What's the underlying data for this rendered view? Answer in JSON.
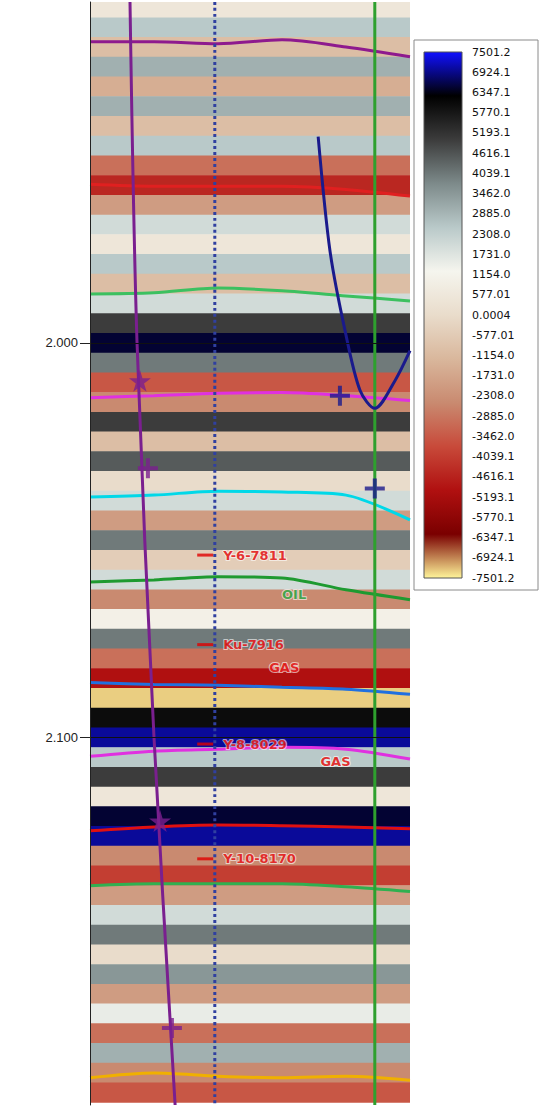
{
  "chart_data": {
    "type": "seismic_section",
    "ylim": [
      1.9136,
      2.1932
    ],
    "yticks": [
      {
        "value": 2.0,
        "label": "2.000"
      },
      {
        "value": 2.1,
        "label": "2.100"
      }
    ],
    "xlim": [
      0,
      100
    ],
    "tick_labels": "y",
    "grid": true,
    "amplitude": {
      "time": [
        1.915,
        1.92,
        1.925,
        1.93,
        1.935,
        1.94,
        1.945,
        1.95,
        1.955,
        1.96,
        1.965,
        1.97,
        1.975,
        1.98,
        1.985,
        1.99,
        1.995,
        2.0,
        2.005,
        2.01,
        2.015,
        2.02,
        2.025,
        2.03,
        2.035,
        2.04,
        2.045,
        2.05,
        2.055,
        2.06,
        2.065,
        2.07,
        2.075,
        2.08,
        2.085,
        2.09,
        2.095,
        2.1,
        2.105,
        2.11,
        2.115,
        2.12,
        2.125,
        2.13,
        2.135,
        2.14,
        2.145,
        2.15,
        2.155,
        2.16,
        2.165,
        2.17,
        2.175,
        2.18,
        2.185,
        2.19
      ],
      "values": [
        500,
        2500,
        -1000,
        3000,
        -1500,
        3000,
        -1000,
        2500,
        -3000,
        -4500,
        -2000,
        2000,
        500,
        2500,
        -1000,
        2000,
        5000,
        6500,
        4000,
        -3500,
        -2500,
        5000,
        -1000,
        4500,
        0,
        2000,
        -2000,
        4000,
        -500,
        2000,
        -2500,
        1000,
        4000,
        -3000,
        -5000,
        -7300,
        6000,
        7000,
        2500,
        5000,
        500,
        6500,
        7000,
        -2500,
        -4000,
        -2000,
        2000,
        4000,
        0,
        3500,
        -2000,
        1500,
        -3000,
        3000,
        -2500,
        -3500
      ]
    },
    "colorbar": {
      "range": [
        -7501.2,
        7501.2
      ],
      "ticks": [
        7501.2,
        6924.1,
        6347.1,
        5770.1,
        5193.1,
        4616.1,
        4039.1,
        {
          "value": 3462,
          "label": "3462.0"
        },
        {
          "value": 2885,
          "label": "2885.0"
        },
        {
          "value": 2308,
          "label": "2308.0"
        },
        {
          "value": 1731,
          "label": "1731.0"
        },
        {
          "value": 1154,
          "label": "1154.0"
        },
        577.01,
        0.0004,
        -577.01,
        {
          "value": -1154,
          "label": "-1154.0"
        },
        {
          "value": -1731,
          "label": "-1731.0"
        },
        {
          "value": -2308,
          "label": "-2308.0"
        },
        {
          "value": -2885,
          "label": "-2885.0"
        },
        {
          "value": -3462,
          "label": "-3462.0"
        },
        -4039.1,
        -4616.1,
        -5193.1,
        -5770.1,
        -6347.1,
        -6924.1,
        -7501.2
      ],
      "colors": [
        "#fff59a",
        "#7a0000",
        "#b01010",
        "#c84a3a",
        "#c98a70",
        "#d9b79c",
        "#e9dccb",
        "#f5f5ee",
        "#b9c9c9",
        "#7d8a8a",
        "#3c3c3c",
        "#000000",
        "#1010ff"
      ]
    },
    "series": [
      {
        "type": "line",
        "color": "#8e1a8e",
        "line_style": "solid",
        "x": [
          0,
          20,
          40,
          60,
          80,
          100
        ],
        "values": [
          1.9237,
          1.9237,
          1.9242,
          1.9232,
          1.925,
          1.9275
        ]
      },
      {
        "type": "line",
        "color": "#e02020",
        "line_style": "solid",
        "x": [
          0,
          20,
          40,
          60,
          80,
          100
        ],
        "values": [
          1.9598,
          1.9603,
          1.9603,
          1.9603,
          1.9611,
          1.9628
        ]
      },
      {
        "type": "line",
        "color": "#3cc060",
        "line_style": "solid",
        "x": [
          0,
          20,
          40,
          60,
          80,
          100
        ],
        "values": [
          1.9876,
          1.9873,
          1.9861,
          1.9868,
          1.9881,
          1.9894
        ]
      },
      {
        "type": "line",
        "color": "#e030e0",
        "line_style": "solid",
        "x": [
          0,
          20,
          40,
          60,
          80,
          100
        ],
        "values": [
          2.0139,
          2.0134,
          2.0128,
          2.0126,
          2.0134,
          2.0146
        ]
      },
      {
        "type": "line",
        "color": "#00d8e8",
        "line_style": "solid",
        "x": [
          0,
          20,
          40,
          60,
          80,
          100
        ],
        "values": [
          2.0391,
          2.0386,
          2.0376,
          2.0378,
          2.0386,
          2.0449
        ]
      },
      {
        "type": "line",
        "color": "#1e9a30",
        "line_style": "solid",
        "x": [
          0,
          20,
          40,
          60,
          80,
          100
        ],
        "values": [
          2.0606,
          2.0601,
          2.0593,
          2.0596,
          2.0626,
          2.0651
        ]
      },
      {
        "type": "line",
        "color": "#2070e0",
        "line_style": "solid",
        "x": [
          0,
          20,
          40,
          60,
          80,
          100
        ],
        "values": [
          2.0861,
          2.0866,
          2.0868,
          2.0873,
          2.0878,
          2.0891
        ]
      },
      {
        "type": "line",
        "color": "#e030e0",
        "line_style": "solid",
        "x": [
          0,
          20,
          40,
          60,
          80,
          100
        ],
        "values": [
          2.1048,
          2.1035,
          2.103,
          2.1025,
          2.103,
          2.1055
        ]
      },
      {
        "type": "line",
        "color": "#e01010",
        "line_style": "solid",
        "x": [
          0,
          20,
          40,
          60,
          80,
          100
        ],
        "values": [
          2.1237,
          2.1227,
          2.1222,
          2.1224,
          2.1227,
          2.1232
        ]
      },
      {
        "type": "line",
        "color": "#30b050",
        "line_style": "solid",
        "x": [
          0,
          20,
          40,
          60,
          80,
          100
        ],
        "values": [
          2.1376,
          2.1371,
          2.1371,
          2.1371,
          2.1379,
          2.1391
        ]
      },
      {
        "type": "line",
        "color": "#f0b000",
        "line_style": "solid",
        "x": [
          0,
          20,
          40,
          60,
          80,
          100
        ],
        "values": [
          2.1863,
          2.1851,
          2.1859,
          2.1863,
          2.1859,
          2.1869
        ]
      },
      {
        "type": "line",
        "color": "#3040a0",
        "line_style": "dotted",
        "x": [
          39,
          39
        ],
        "values": [
          1.9136,
          2.1932
        ]
      },
      {
        "type": "line",
        "color": "#2ea02e",
        "line_style": "solid",
        "x": [
          89,
          89
        ],
        "values": [
          1.9136,
          2.1932
        ]
      },
      {
        "type": "line",
        "color": "#1a1a8c",
        "line_style": "solid",
        "x": [
          71.3,
          75,
          79.7,
          84.4,
          89,
          95.3,
          100
        ],
        "values": [
          1.9477,
          1.9767,
          1.9969,
          2.0121,
          2.0166,
          2.0096,
          2.002
        ]
      },
      {
        "type": "line",
        "color": "#7a1f8f",
        "line_style": "solid",
        "x": [
          12.5,
          14.7,
          20,
          26.6
        ],
        "values": [
          1.9136,
          2.0,
          2.1,
          2.1932
        ]
      }
    ],
    "markers": [
      {
        "marker": "star",
        "color": "#7a1f8f",
        "x": [
          15.6,
          21.9
        ],
        "values": [
          2.0096,
          2.1212
        ]
      },
      {
        "marker": "cross",
        "color": "#7a1f8f",
        "x": [
          18.1,
          25.6
        ],
        "values": [
          2.0318,
          2.1737
        ]
      },
      {
        "marker": "cross",
        "color": "#1a1a8c",
        "x": [
          78.1,
          89
        ],
        "values": [
          2.0134,
          2.0369
        ]
      }
    ],
    "annotations": [
      {
        "text": "Y-6-7811",
        "x": 36,
        "y": 2.0538,
        "color": "#e00000",
        "marker": "tick"
      },
      {
        "text": "OIL",
        "x": 60,
        "y": 2.0638,
        "color": "#1e9a30",
        "marker": "none"
      },
      {
        "text": "Ku-7916",
        "x": 36,
        "y": 2.0765,
        "color": "#e00000",
        "marker": "tick"
      },
      {
        "text": "GAS",
        "x": 56,
        "y": 2.0823,
        "color": "#e00000",
        "marker": "none"
      },
      {
        "text": "Y-8-8029",
        "x": 36,
        "y": 2.1017,
        "color": "#e00000",
        "marker": "tick"
      },
      {
        "text": "GAS",
        "x": 72,
        "y": 2.106,
        "color": "#e00000",
        "marker": "none"
      },
      {
        "text": "Y-10-8170",
        "x": 36,
        "y": 2.1308,
        "color": "#e00000",
        "marker": "tick"
      }
    ]
  }
}
